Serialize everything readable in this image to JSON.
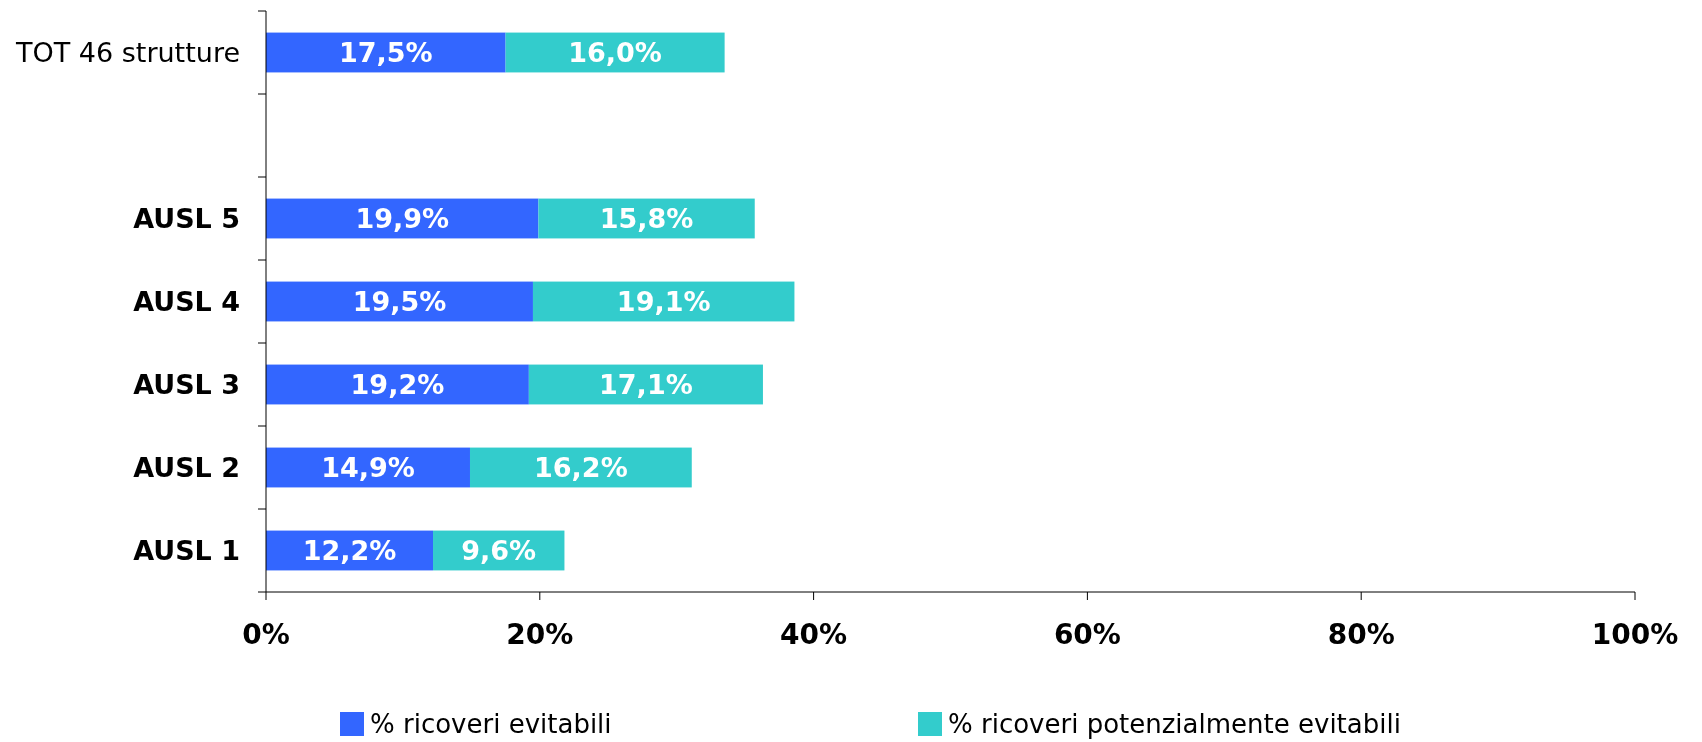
{
  "chart_data": {
    "type": "bar",
    "orientation": "horizontal",
    "stacked": true,
    "categories": [
      "TOT 46 strutture",
      null,
      "AUSL 5",
      "AUSL 4",
      "AUSL 3",
      "AUSL 2",
      "AUSL 1"
    ],
    "series": [
      {
        "name": "% ricoveri evitabili",
        "color": "#3366ff",
        "values": [
          17.5,
          null,
          19.9,
          19.5,
          19.2,
          14.9,
          12.2
        ],
        "value_labels": [
          "17,5%",
          null,
          "19,9%",
          "19,5%",
          "19,2%",
          "14,9%",
          "12,2%"
        ]
      },
      {
        "name": "% ricoveri potenzialmente evitabili",
        "color": "#33cccc",
        "values": [
          16.0,
          null,
          15.8,
          19.1,
          17.1,
          16.2,
          9.6
        ],
        "value_labels": [
          "16,0%",
          null,
          "15,8%",
          "19,1%",
          "17,1%",
          "16,2%",
          "9,6%"
        ]
      }
    ],
    "xlim": [
      0,
      100
    ],
    "xticks": [
      {
        "value": 0,
        "label": "0%"
      },
      {
        "value": 20,
        "label": "20%"
      },
      {
        "value": 40,
        "label": "40%"
      },
      {
        "value": 60,
        "label": "60%"
      },
      {
        "value": 80,
        "label": "80%"
      },
      {
        "value": 100,
        "label": "100%"
      }
    ],
    "grid": false,
    "legend": "bottom"
  }
}
